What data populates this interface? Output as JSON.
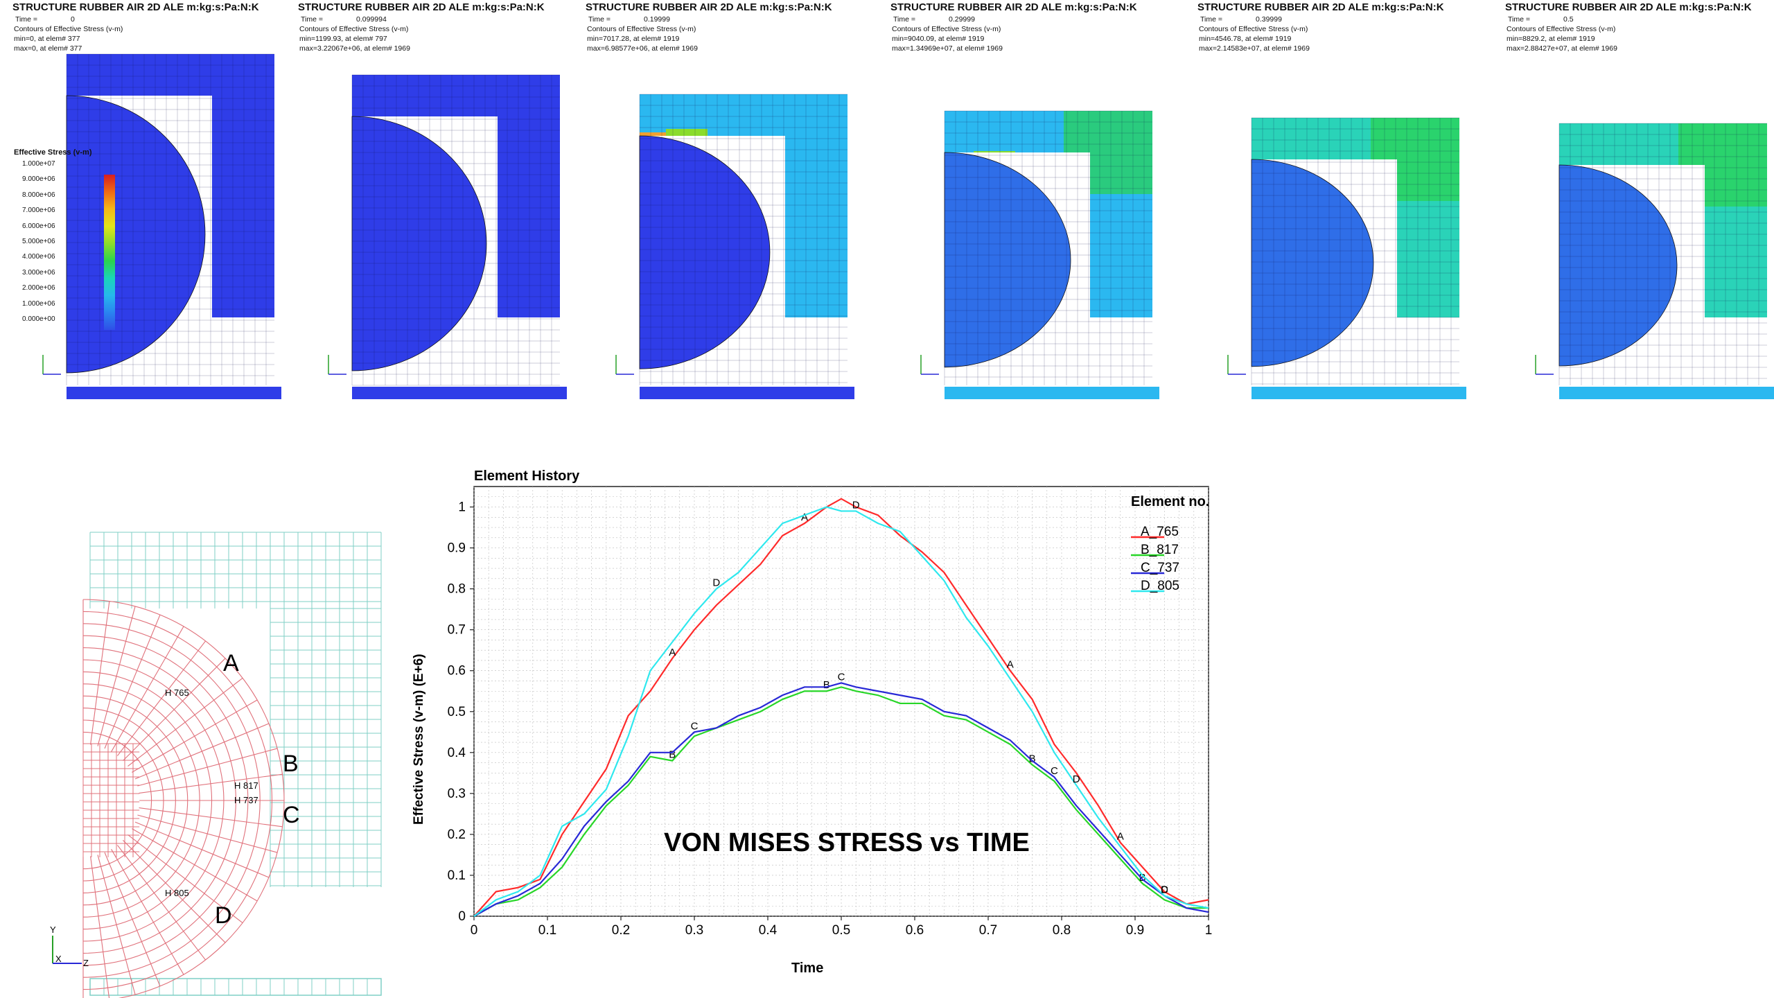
{
  "fem_panels": [
    {
      "title": "STRUCTURE RUBBER AIR 2D ALE m:kg:s:Pa:N:K",
      "time_label": "Time =",
      "time": "0",
      "contour": "Contours of Effective Stress (v-m)",
      "min": "min=0, at elem# 377",
      "max": "max=0, at elem# 377"
    },
    {
      "title": "STRUCTURE RUBBER AIR 2D ALE m:kg:s:Pa:N:K",
      "time_label": "Time =",
      "time": "0.099994",
      "contour": "Contours of Effective Stress (v-m)",
      "min": "min=1199.93, at elem# 797",
      "max": "max=3.22067e+06, at elem# 1969"
    },
    {
      "title": "STRUCTURE RUBBER AIR 2D ALE m:kg:s:Pa:N:K",
      "time_label": "Time =",
      "time": "0.19999",
      "contour": "Contours of Effective Stress (v-m)",
      "min": "min=7017.28, at elem# 1919",
      "max": "max=6.98577e+06, at elem# 1969"
    },
    {
      "title": "STRUCTURE RUBBER AIR 2D ALE m:kg:s:Pa:N:K",
      "time_label": "Time =",
      "time": "0.29999",
      "contour": "Contours of Effective Stress (v-m)",
      "min": "min=9040.09, at elem# 1919",
      "max": "max=1.34969e+07, at elem# 1969"
    },
    {
      "title": "STRUCTURE RUBBER AIR 2D ALE m:kg:s:Pa:N:K",
      "time_label": "Time =",
      "time": "0.39999",
      "contour": "Contours of Effective Stress (v-m)",
      "min": "min=4546.78, at elem# 1919",
      "max": "max=2.14583e+07, at elem# 1969"
    },
    {
      "title": "STRUCTURE RUBBER AIR 2D ALE m:kg:s:Pa:N:K",
      "time_label": "Time =",
      "time": "0.5",
      "contour": "Contours of Effective Stress (v-m)",
      "min": "min=8829.2, at elem# 1919",
      "max": "max=2.88427e+07, at elem# 1969"
    }
  ],
  "fringe_legend": {
    "title": "Effective Stress (v-m)",
    "levels": [
      "1.000e+07",
      "9.000e+06",
      "8.000e+06",
      "7.000e+06",
      "6.000e+06",
      "5.000e+06",
      "4.000e+06",
      "3.000e+06",
      "2.000e+06",
      "1.000e+06",
      "0.000e+00"
    ],
    "colors": [
      "#d81e1e",
      "#f06b14",
      "#f5b818",
      "#e2e51b",
      "#8bdc2c",
      "#2bd34d",
      "#1ad4b8",
      "#26b8ec",
      "#2a84f0",
      "#2f4fe8"
    ]
  },
  "mesh_diagram": {
    "labels": {
      "a": "A",
      "b": "B",
      "c": "C",
      "d": "D"
    },
    "history_nodes": [
      "H 765",
      "H 817",
      "H 737",
      "H 805"
    ],
    "axis": {
      "y": "Y",
      "x": "X",
      "z": "Z"
    }
  },
  "overlay_text": "VON MISES STRESS vs TIME",
  "colors": {
    "mesh_blue": "#2f3de8",
    "rubber_mesh": "#e0707a",
    "air_mesh": "#7fcfc6",
    "red": "#ff2a2a",
    "green": "#27d627",
    "blue": "#2828d6",
    "cyan": "#2ee8ee"
  },
  "chart_data": {
    "type": "line",
    "title": "Element History",
    "xlabel": "Time",
    "ylabel": "Effective Stress (v-m) (E+6)",
    "xlim": [
      0,
      1
    ],
    "ylim": [
      0,
      1.05
    ],
    "xticks": [
      "0",
      "0.1",
      "0.2",
      "0.3",
      "0.4",
      "0.5",
      "0.6",
      "0.7",
      "0.8",
      "0.9",
      "1"
    ],
    "yticks": [
      "0",
      "0.1",
      "0.2",
      "0.3",
      "0.4",
      "0.5",
      "0.6",
      "0.7",
      "0.8",
      "0.9",
      "1"
    ],
    "grid": true,
    "legend_title": "Element no.",
    "legend_position": "top-right",
    "series": [
      {
        "name": "A_765",
        "marker": "A",
        "color": "#ff2a2a",
        "x": [
          0,
          0.03,
          0.06,
          0.09,
          0.12,
          0.15,
          0.18,
          0.21,
          0.24,
          0.27,
          0.3,
          0.33,
          0.36,
          0.39,
          0.42,
          0.45,
          0.48,
          0.5,
          0.52,
          0.55,
          0.58,
          0.61,
          0.64,
          0.67,
          0.7,
          0.73,
          0.76,
          0.79,
          0.82,
          0.85,
          0.88,
          0.91,
          0.94,
          0.97,
          1.0
        ],
        "y": [
          0.0,
          0.06,
          0.07,
          0.09,
          0.2,
          0.28,
          0.36,
          0.49,
          0.55,
          0.63,
          0.7,
          0.76,
          0.81,
          0.86,
          0.93,
          0.96,
          1.0,
          1.02,
          1.0,
          0.98,
          0.93,
          0.89,
          0.84,
          0.76,
          0.68,
          0.6,
          0.53,
          0.42,
          0.35,
          0.27,
          0.18,
          0.12,
          0.06,
          0.03,
          0.04
        ]
      },
      {
        "name": "B_817",
        "marker": "B",
        "color": "#27d627",
        "x": [
          0,
          0.03,
          0.06,
          0.09,
          0.12,
          0.15,
          0.18,
          0.21,
          0.24,
          0.27,
          0.3,
          0.33,
          0.36,
          0.39,
          0.42,
          0.45,
          0.48,
          0.5,
          0.52,
          0.55,
          0.58,
          0.61,
          0.64,
          0.67,
          0.7,
          0.73,
          0.76,
          0.79,
          0.82,
          0.85,
          0.88,
          0.91,
          0.94,
          0.97,
          1.0
        ],
        "y": [
          0.0,
          0.03,
          0.04,
          0.07,
          0.12,
          0.2,
          0.27,
          0.32,
          0.39,
          0.38,
          0.44,
          0.46,
          0.48,
          0.5,
          0.53,
          0.55,
          0.55,
          0.56,
          0.55,
          0.54,
          0.52,
          0.52,
          0.49,
          0.48,
          0.45,
          0.42,
          0.37,
          0.33,
          0.26,
          0.2,
          0.14,
          0.08,
          0.04,
          0.02,
          0.02
        ]
      },
      {
        "name": "C_737",
        "marker": "C",
        "color": "#2828d6",
        "x": [
          0,
          0.03,
          0.06,
          0.09,
          0.12,
          0.15,
          0.18,
          0.21,
          0.24,
          0.27,
          0.3,
          0.33,
          0.36,
          0.39,
          0.42,
          0.45,
          0.48,
          0.5,
          0.52,
          0.55,
          0.58,
          0.61,
          0.64,
          0.67,
          0.7,
          0.73,
          0.76,
          0.79,
          0.82,
          0.85,
          0.88,
          0.91,
          0.94,
          0.97,
          1.0
        ],
        "y": [
          0.0,
          0.03,
          0.05,
          0.08,
          0.14,
          0.22,
          0.28,
          0.33,
          0.4,
          0.4,
          0.45,
          0.46,
          0.49,
          0.51,
          0.54,
          0.56,
          0.56,
          0.57,
          0.56,
          0.55,
          0.54,
          0.53,
          0.5,
          0.49,
          0.46,
          0.43,
          0.38,
          0.34,
          0.27,
          0.21,
          0.15,
          0.09,
          0.05,
          0.02,
          0.01
        ]
      },
      {
        "name": "D_805",
        "marker": "D",
        "color": "#2ee8ee",
        "x": [
          0,
          0.03,
          0.06,
          0.09,
          0.12,
          0.15,
          0.18,
          0.21,
          0.24,
          0.27,
          0.3,
          0.33,
          0.36,
          0.39,
          0.42,
          0.45,
          0.48,
          0.5,
          0.52,
          0.55,
          0.58,
          0.61,
          0.64,
          0.67,
          0.7,
          0.73,
          0.76,
          0.79,
          0.82,
          0.85,
          0.88,
          0.91,
          0.94,
          0.97,
          1.0
        ],
        "y": [
          0.0,
          0.04,
          0.06,
          0.1,
          0.22,
          0.25,
          0.31,
          0.44,
          0.6,
          0.67,
          0.74,
          0.8,
          0.84,
          0.9,
          0.96,
          0.98,
          1.0,
          0.99,
          0.99,
          0.96,
          0.94,
          0.88,
          0.82,
          0.73,
          0.66,
          0.58,
          0.5,
          0.4,
          0.32,
          0.24,
          0.17,
          0.1,
          0.05,
          0.03,
          0.02
        ]
      }
    ]
  }
}
